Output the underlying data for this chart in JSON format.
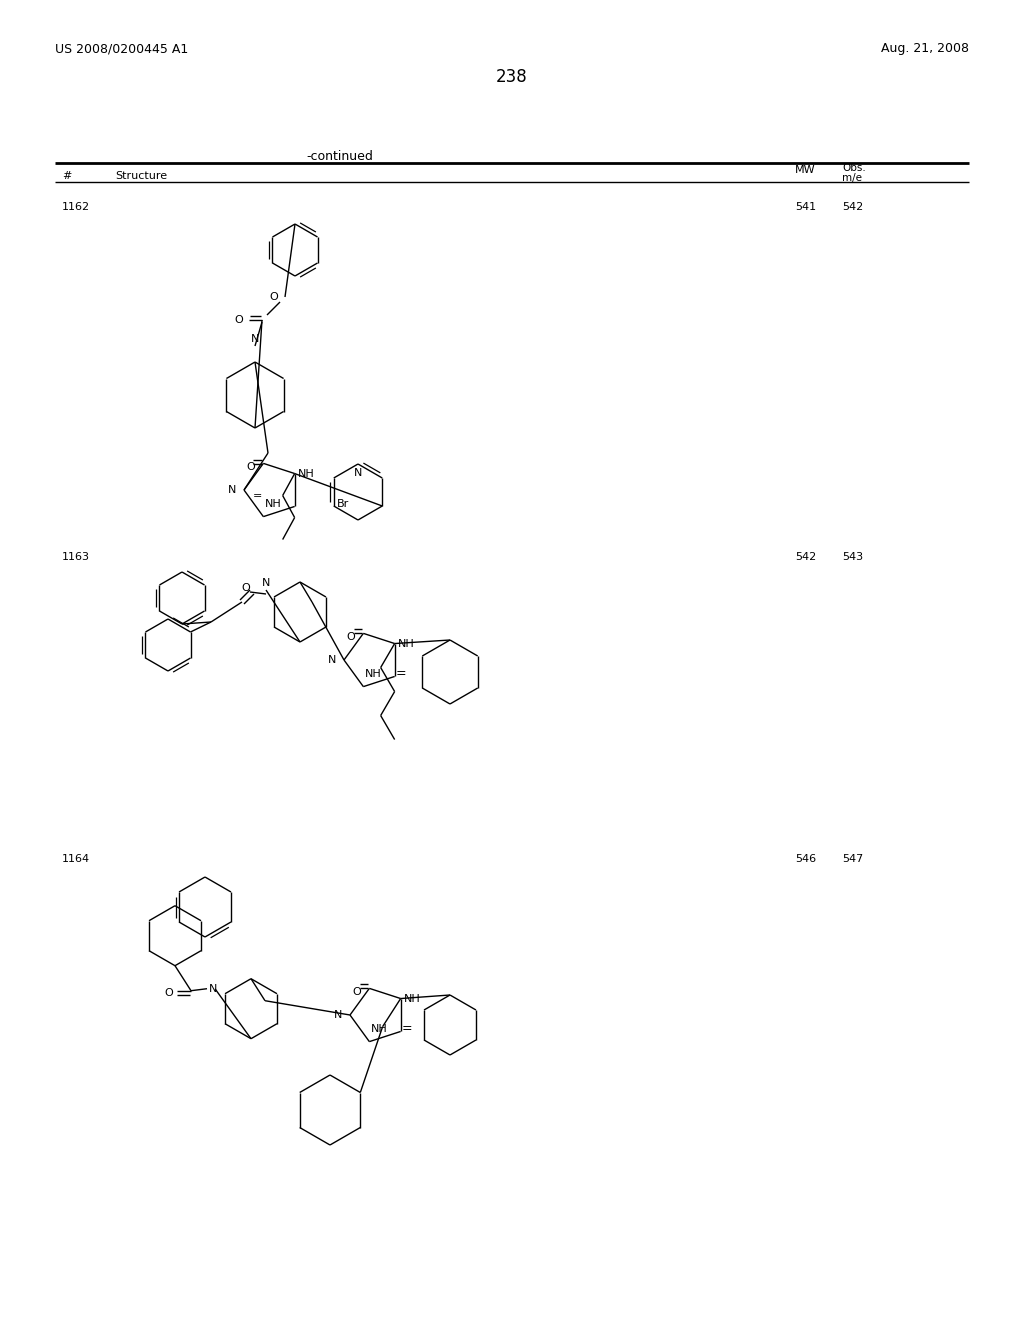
{
  "page_number": "238",
  "patent_number": "US 2008/0200445 A1",
  "patent_date": "Aug. 21, 2008",
  "continued_text": "-continued",
  "compounds": [
    {
      "id": "1162",
      "mw": "541",
      "obs": "542"
    },
    {
      "id": "1163",
      "mw": "542",
      "obs": "543"
    },
    {
      "id": "1164",
      "mw": "546",
      "obs": "547"
    }
  ],
  "background_color": "#ffffff"
}
